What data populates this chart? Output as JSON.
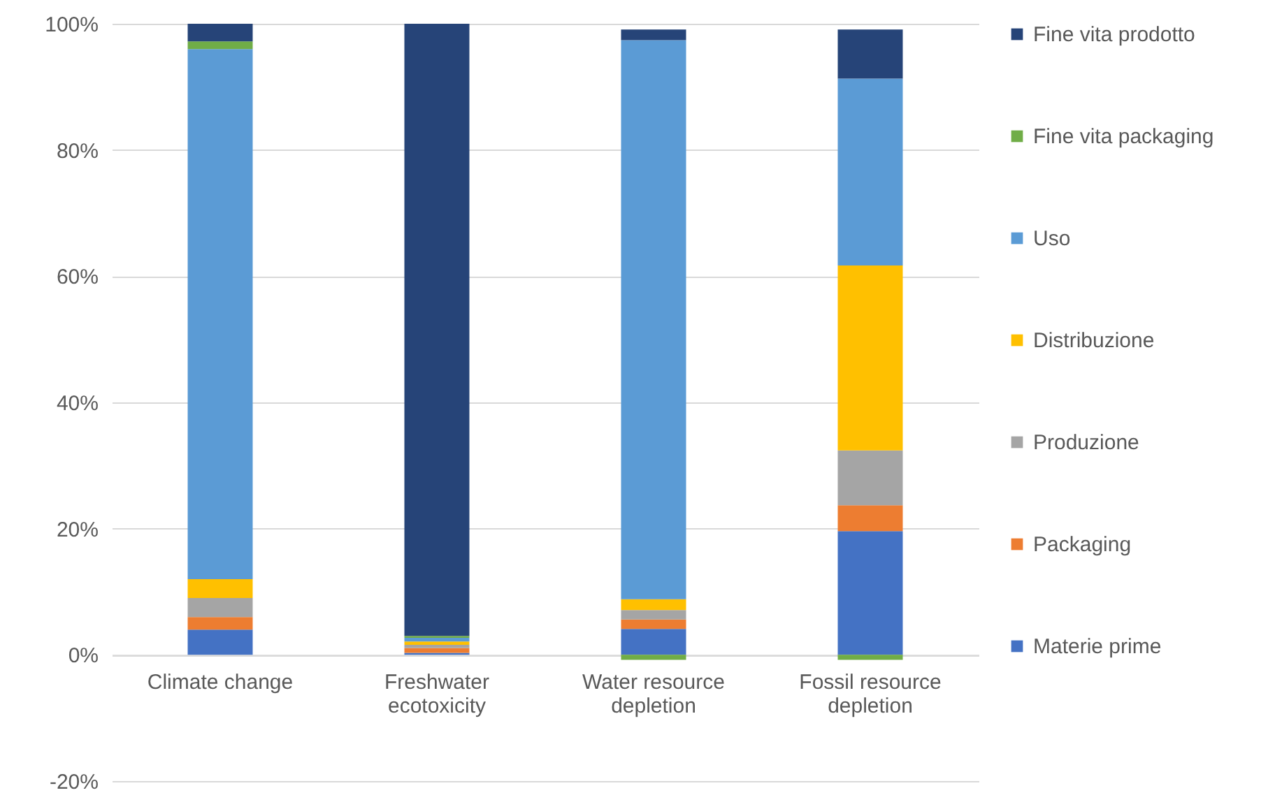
{
  "chart_data": {
    "type": "bar",
    "stacked": true,
    "categories": [
      "Climate change",
      "Freshwater ecotoxicity",
      "Water resource depletion",
      "Fossil resource depletion"
    ],
    "series": [
      {
        "name": "Materie prime",
        "color": "#4472c4",
        "values": [
          4,
          0.3,
          4.1,
          19.6
        ]
      },
      {
        "name": "Packaging",
        "color": "#ed7d31",
        "values": [
          2,
          0.8,
          1.5,
          4.1
        ]
      },
      {
        "name": "Produzione",
        "color": "#a5a5a5",
        "values": [
          3,
          0.5,
          1.5,
          8.7
        ]
      },
      {
        "name": "Distribuzione",
        "color": "#ffc000",
        "values": [
          3,
          0.5,
          1.7,
          29.3
        ]
      },
      {
        "name": "Uso",
        "color": "#5b9bd5",
        "values": [
          84,
          0.6,
          88.6,
          29.6
        ]
      },
      {
        "name": "Fine vita packaging",
        "color": "#70ad47",
        "values": [
          1.2,
          0.3,
          -0.8,
          -0.8
        ]
      },
      {
        "name": "Fine vita prodotto",
        "color": "#264478",
        "values": [
          2.8,
          97,
          1.7,
          7.8
        ]
      }
    ],
    "ylim": [
      -20,
      100
    ],
    "yticks": [
      {
        "value": -20,
        "label": "-20%"
      },
      {
        "value": 0,
        "label": "0%"
      },
      {
        "value": 20,
        "label": "20%"
      },
      {
        "value": 40,
        "label": "40%"
      },
      {
        "value": 60,
        "label": "60%"
      },
      {
        "value": 80,
        "label": "80%"
      },
      {
        "value": 100,
        "label": "100%"
      }
    ],
    "grid": "y",
    "legend": "right"
  }
}
